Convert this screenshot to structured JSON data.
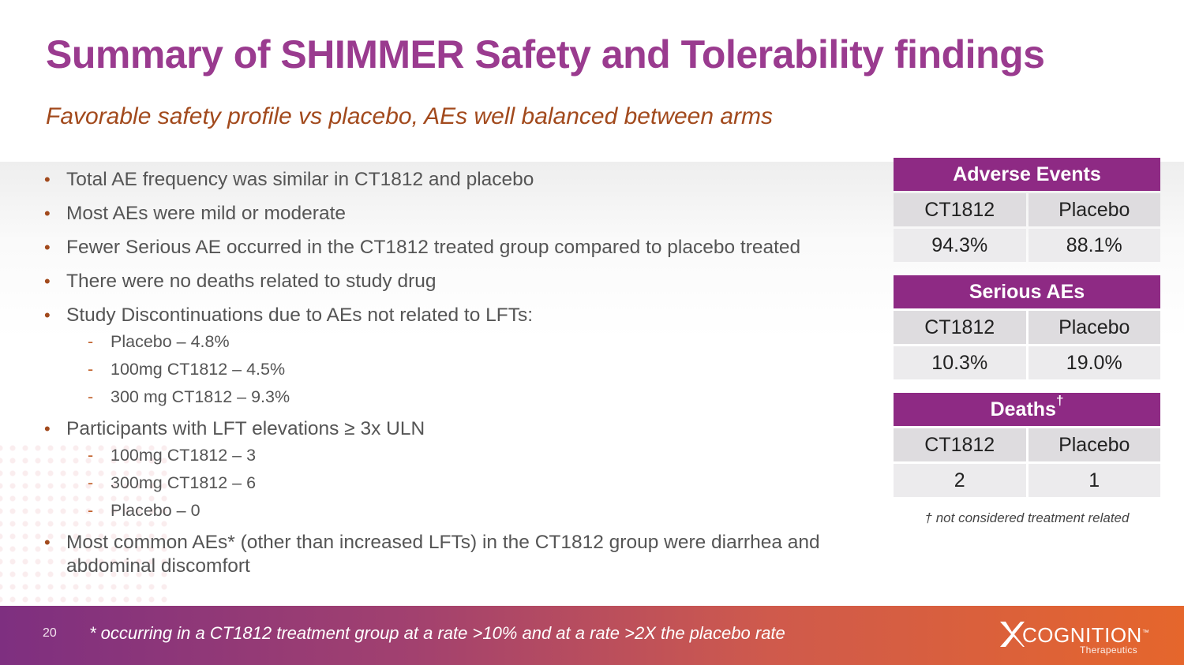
{
  "title": "Summary of SHIMMER Safety and Tolerability findings",
  "subtitle": "Favorable safety profile vs placebo, AEs well balanced between arms",
  "bullets": [
    {
      "text": "Total AE frequency was similar in CT1812 and placebo"
    },
    {
      "text": "Most AEs were mild or moderate"
    },
    {
      "text": "Fewer Serious AE occurred in the CT1812 treated group compared to placebo treated"
    },
    {
      "text": "There were no deaths related to study drug"
    },
    {
      "text": "Study Discontinuations due to AEs not related to LFTs:",
      "sub": [
        "Placebo – 4.8%",
        "100mg CT1812 – 4.5%",
        "300 mg CT1812 – 9.3%"
      ]
    },
    {
      "text": "Participants with LFT elevations ≥ 3x ULN",
      "sub": [
        "100mg CT1812 – 3",
        "300mg CT1812 – 6",
        "Placebo – 0"
      ]
    },
    {
      "text": "Most common AEs* (other than increased LFTs) in the CT1812 group were diarrhea and abdominal discomfort"
    }
  ],
  "tables": [
    {
      "title": "Adverse Events",
      "title_mark": "",
      "columns": [
        "CT1812",
        "Placebo"
      ],
      "values": [
        "94.3%",
        "88.1%"
      ]
    },
    {
      "title": "Serious AEs",
      "title_mark": "",
      "columns": [
        "CT1812",
        "Placebo"
      ],
      "values": [
        "10.3%",
        "19.0%"
      ]
    },
    {
      "title": "Deaths",
      "title_mark": "†",
      "columns": [
        "CT1812",
        "Placebo"
      ],
      "values": [
        "2",
        "1"
      ]
    }
  ],
  "table_footnote": "† not considered treatment related",
  "footer": {
    "page_number": "20",
    "footnote": "* occurring in a CT1812 treatment group at a rate >10% and at a rate >2X the placebo rate",
    "logo_text": "COGNITION",
    "logo_tm": "™",
    "logo_subtext": "Therapeutics",
    "logo_icon": "x-mark-icon"
  },
  "colors": {
    "title": "#9a3b8f",
    "subtitle": "#a24a1d",
    "table_header": "#8e2a84",
    "footer_start": "#7e2f80",
    "footer_end": "#e5662c"
  }
}
